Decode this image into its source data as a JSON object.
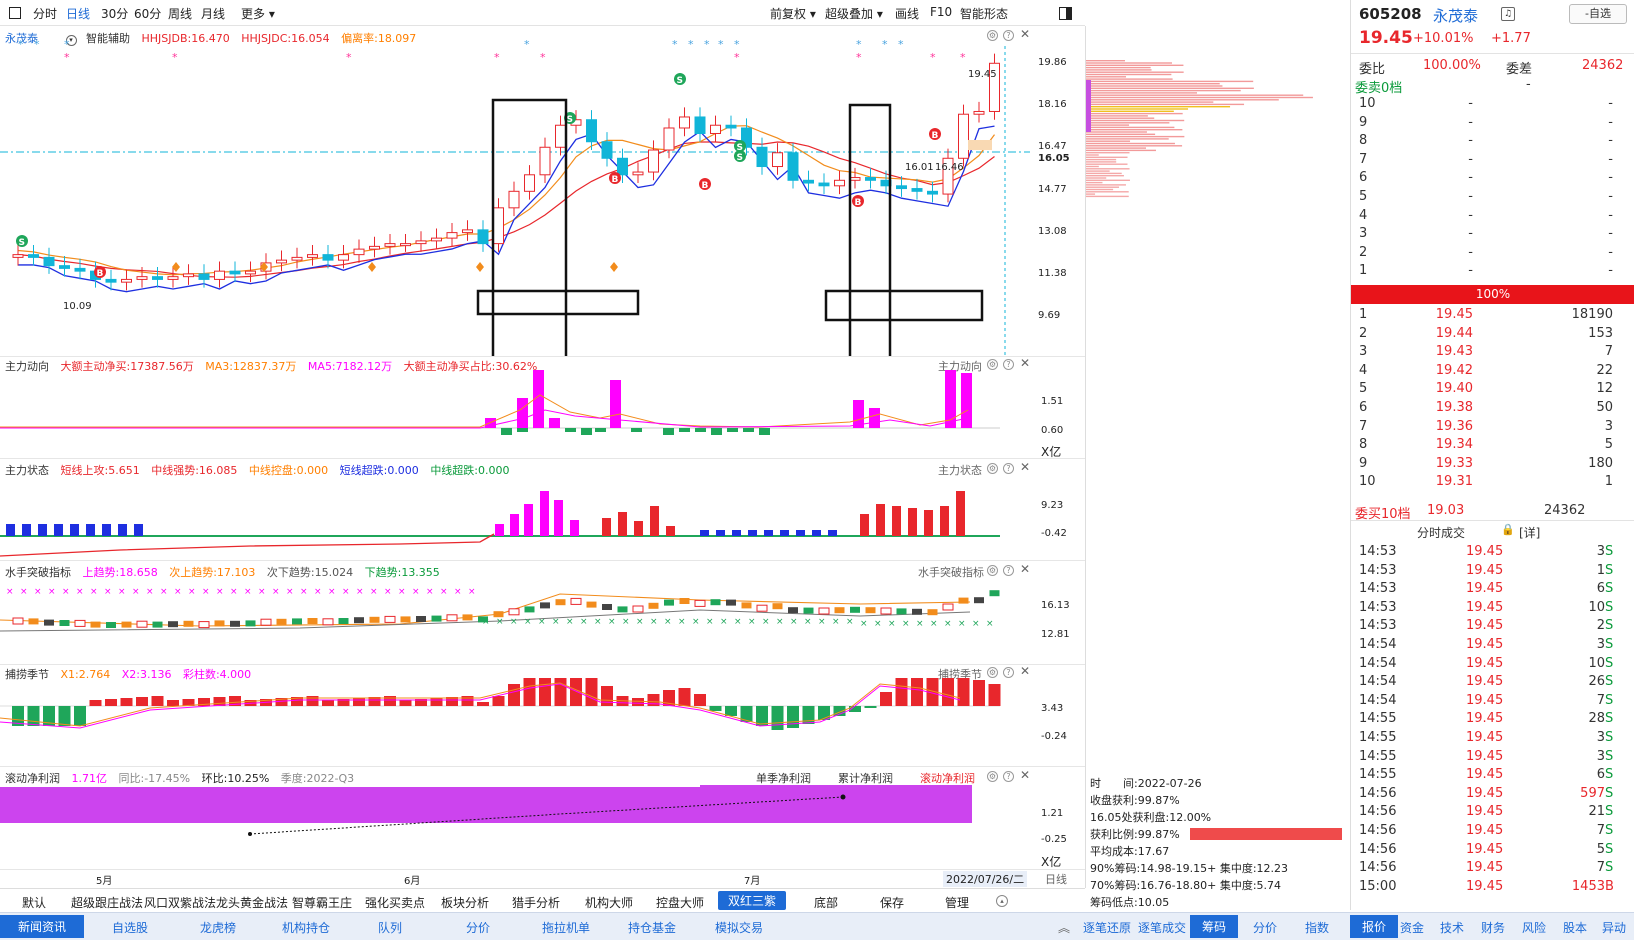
{
  "toolbar": {
    "items": [
      "分时",
      "日线",
      "30分",
      "60分",
      "周线",
      "月线",
      "更多"
    ],
    "right": [
      "前复权",
      "超级叠加",
      "画线",
      "F10",
      "智能形态"
    ]
  },
  "main_panel": {
    "stock_name": "永茂泰",
    "indicator": "智能辅助",
    "hhjsjdb": "HHJSJDB:16.470",
    "hhjsjdc": "HHJSJDC:16.054",
    "deviation": "偏离率:18.097",
    "price_labels": [
      "19.86",
      "18.16",
      "16.47",
      "16.05",
      "14.77",
      "13.08",
      "11.38",
      "9.69"
    ],
    "high_mark": "19.45",
    "low_mark": "10.09",
    "mid_marks": [
      "16.01",
      "16.46"
    ]
  },
  "panel_zlld": {
    "name": "主力动向",
    "v1": "大额主动净买:17387.56万",
    "v2": "MA3:12837.37万",
    "v3": "MA5:7182.12万",
    "v4": "大额主动净买占比:30.62%",
    "labels": [
      "1.51",
      "0.60",
      "X亿"
    ]
  },
  "panel_zlzt": {
    "name": "主力状态",
    "v1": "短线上攻:5.651",
    "v2": "中线强势:16.085",
    "v3": "中线控盘:0.000",
    "v4": "短线超跌:0.000",
    "v5": "中线超跌:0.000",
    "labels": [
      "9.23",
      "-0.42"
    ]
  },
  "panel_sstp": {
    "name": "水手突破指标",
    "v1": "上趋势:18.658",
    "v2": "次上趋势:17.103",
    "v3": "次下趋势:15.024",
    "v4": "下趋势:13.355",
    "labels": [
      "16.13",
      "12.81"
    ]
  },
  "panel_blj": {
    "name": "捕捞季节",
    "v1": "X1:2.764",
    "v2": "X2:3.136",
    "v3": "彩柱数:4.000",
    "labels": [
      "3.43",
      "-0.24"
    ]
  },
  "panel_profit": {
    "name": "滚动净利润",
    "v1": "1.71亿",
    "v2": "同比:-17.45%",
    "v3": "环比:10.25%",
    "v4": "季度:2022-Q3",
    "tabs": [
      "单季净利润",
      "累计净利润",
      "滚动净利润"
    ],
    "labels": [
      "1.21",
      "-0.25",
      "X亿"
    ]
  },
  "xaxis": {
    "months": [
      "5月",
      "6月",
      "7月"
    ],
    "current_date": "2022/07/26/二",
    "period": "日线"
  },
  "bottom_tabs": [
    "默认",
    "超级跟庄战法",
    "风口双紫战法",
    "龙头黄金战法",
    "智尊霸王庄",
    "强化买卖点",
    "板块分析",
    "猎手分析",
    "机构大师",
    "控盘大师",
    "双红三紫",
    "底部",
    "保存",
    "管理"
  ],
  "bottom_active": "双红三紫",
  "bottom_bar": [
    "新闻资讯",
    "自选股",
    "龙虎榜",
    "机构持仓",
    "队列",
    "分价",
    "拖拉机单",
    "持仓基金",
    "模拟交易"
  ],
  "bottom_bar_mid": [
    "逐笔还原",
    "逐笔成交",
    "筹码",
    "分价",
    "指数"
  ],
  "bottom_bar_mid_active": "筹码",
  "bottom_bar_right": [
    "报价",
    "资金",
    "技术",
    "财务",
    "风险",
    "股本",
    "异动"
  ],
  "bottom_bar_right_active": "报价",
  "chip": {
    "date": "时　　间:2022-07-26",
    "profit": "收盘获利:99.87%",
    "pos_profit": "16.05处获利盘:12.00%",
    "ratio": "获利比例:99.87%",
    "avg_cost": "平均成本:17.67",
    "c90": "90%筹码:14.98-19.15+ 集中度:12.23",
    "c70": "70%筹码:16.76-18.80+ 集中度:5.74",
    "low": "筹码低点:10.05"
  },
  "quote": {
    "code": "605208",
    "name": "永茂泰",
    "watch_btn": "-自选",
    "price": "19.45",
    "pct": "+10.01%",
    "chg": "+1.77",
    "wb_label": "委比",
    "wb_val": "100.00%",
    "wc_label": "委差",
    "wc_val": "24362",
    "sell_header": "委卖0档",
    "sell_rows": [
      {
        "lvl": "10",
        "price": "-",
        "vol": "-"
      },
      {
        "lvl": "9",
        "price": "-",
        "vol": "-"
      },
      {
        "lvl": "8",
        "price": "-",
        "vol": "-"
      },
      {
        "lvl": "7",
        "price": "-",
        "vol": "-"
      },
      {
        "lvl": "6",
        "price": "-",
        "vol": "-"
      },
      {
        "lvl": "5",
        "price": "-",
        "vol": "-"
      },
      {
        "lvl": "4",
        "price": "-",
        "vol": "-"
      },
      {
        "lvl": "3",
        "price": "-",
        "vol": "-"
      },
      {
        "lvl": "2",
        "price": "-",
        "vol": "-"
      },
      {
        "lvl": "1",
        "price": "-",
        "vol": "-"
      }
    ],
    "bar_label": "100%",
    "buy_rows": [
      {
        "lvl": "1",
        "price": "19.45",
        "vol": "18190"
      },
      {
        "lvl": "2",
        "price": "19.44",
        "vol": "153"
      },
      {
        "lvl": "3",
        "price": "19.43",
        "vol": "7"
      },
      {
        "lvl": "4",
        "price": "19.42",
        "vol": "22"
      },
      {
        "lvl": "5",
        "price": "19.40",
        "vol": "12"
      },
      {
        "lvl": "6",
        "price": "19.38",
        "vol": "50"
      },
      {
        "lvl": "7",
        "price": "19.36",
        "vol": "3"
      },
      {
        "lvl": "8",
        "price": "19.34",
        "vol": "5"
      },
      {
        "lvl": "9",
        "price": "19.33",
        "vol": "180"
      },
      {
        "lvl": "10",
        "price": "19.31",
        "vol": "1"
      }
    ],
    "buy_footer": {
      "label": "委买10档",
      "price": "19.03",
      "vol": "24362"
    },
    "ticks_header": "分时成交",
    "ticks_detail": "[详]",
    "ticks": [
      {
        "t": "14:53",
        "p": "19.45",
        "v": "3",
        "s": "S"
      },
      {
        "t": "14:53",
        "p": "19.45",
        "v": "1",
        "s": "S"
      },
      {
        "t": "14:53",
        "p": "19.45",
        "v": "6",
        "s": "S"
      },
      {
        "t": "14:53",
        "p": "19.45",
        "v": "10",
        "s": "S"
      },
      {
        "t": "14:53",
        "p": "19.45",
        "v": "2",
        "s": "S"
      },
      {
        "t": "14:54",
        "p": "19.45",
        "v": "3",
        "s": "S"
      },
      {
        "t": "14:54",
        "p": "19.45",
        "v": "10",
        "s": "S"
      },
      {
        "t": "14:54",
        "p": "19.45",
        "v": "26",
        "s": "S"
      },
      {
        "t": "14:54",
        "p": "19.45",
        "v": "7",
        "s": "S"
      },
      {
        "t": "14:55",
        "p": "19.45",
        "v": "28",
        "s": "S"
      },
      {
        "t": "14:55",
        "p": "19.45",
        "v": "3",
        "s": "S"
      },
      {
        "t": "14:55",
        "p": "19.45",
        "v": "3",
        "s": "S"
      },
      {
        "t": "14:55",
        "p": "19.45",
        "v": "6",
        "s": "S"
      },
      {
        "t": "14:56",
        "p": "19.45",
        "v": "597",
        "s": "S"
      },
      {
        "t": "14:56",
        "p": "19.45",
        "v": "21",
        "s": "S"
      },
      {
        "t": "14:56",
        "p": "19.45",
        "v": "7",
        "s": "S"
      },
      {
        "t": "14:56",
        "p": "19.45",
        "v": "5",
        "s": "S"
      },
      {
        "t": "14:56",
        "p": "19.45",
        "v": "7",
        "s": "S"
      },
      {
        "t": "15:00",
        "p": "19.45",
        "v": "1453",
        "s": "B"
      }
    ]
  },
  "colors": {
    "up": "#e8272c",
    "down": "#10b5d8",
    "accent": "#1e6bd6",
    "magenta": "#ff00ff",
    "ma": "#1e2fe0"
  }
}
